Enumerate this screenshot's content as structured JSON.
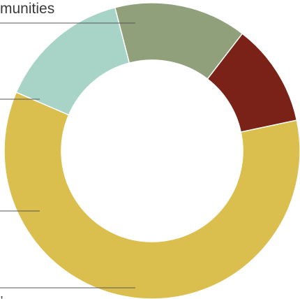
{
  "chart_data": {
    "type": "pie",
    "style": "donut",
    "categories": [
      "",
      "",
      "",
      ""
    ],
    "values": [
      64,
      15.5,
      15.5,
      12
    ],
    "colors": [
      "#dbbf4e",
      "#a8d4c8",
      "#8fa07a",
      "#7a2218"
    ],
    "labels": [
      {
        "text": ","
      },
      {
        "text": "munities"
      },
      {
        "text": ""
      },
      {
        "text": ""
      }
    ]
  }
}
